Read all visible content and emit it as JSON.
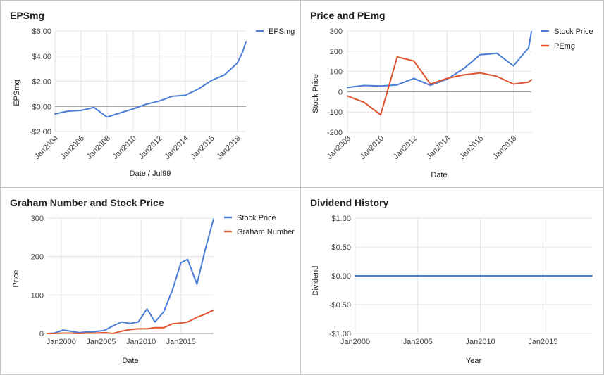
{
  "chart_data": [
    {
      "type": "line",
      "title": "EPSmg",
      "xlabel": "Date / Jul99",
      "ylabel": "EPSmg",
      "xlim": [
        "2004-01",
        "2018-09"
      ],
      "ylim": [
        -2,
        6
      ],
      "x_ticks": [
        {
          "value": "2004-01",
          "label": "Jan2004"
        },
        {
          "value": "2006-01",
          "label": "Jan2006"
        },
        {
          "value": "2008-01",
          "label": "Jan2008"
        },
        {
          "value": "2010-01",
          "label": "Jan2010"
        },
        {
          "value": "2012-01",
          "label": "Jan2012"
        },
        {
          "value": "2014-01",
          "label": "Jan2014"
        },
        {
          "value": "2016-01",
          "label": "Jan2016"
        },
        {
          "value": "2018-01",
          "label": "Jan2018"
        }
      ],
      "y_ticks": [
        {
          "value": 6,
          "label": "$6.00"
        },
        {
          "value": 4,
          "label": "$4.00"
        },
        {
          "value": 2,
          "label": "$2.00"
        },
        {
          "value": 0,
          "label": "$0.00"
        },
        {
          "value": -2,
          "label": "-$2.00"
        }
      ],
      "grid": true,
      "legend": "top-right",
      "series": [
        {
          "name": "EPSmg",
          "color": "#4a7dd8",
          "x": [
            "2004-01",
            "2005-01",
            "2006-01",
            "2007-01",
            "2008-01",
            "2009-01",
            "2010-01",
            "2011-01",
            "2012-01",
            "2013-01",
            "2014-01",
            "2015-01",
            "2016-01",
            "2017-01",
            "2018-01",
            "2018-06",
            "2018-09"
          ],
          "y": [
            -0.6,
            -0.38,
            -0.32,
            -0.08,
            -0.85,
            -0.52,
            -0.2,
            0.17,
            0.42,
            0.8,
            0.88,
            1.38,
            2.05,
            2.5,
            3.45,
            4.35,
            5.15
          ]
        }
      ]
    },
    {
      "type": "line",
      "title": "Price and PEmg",
      "xlabel": "Date",
      "ylabel": "Stock Price",
      "xlim": [
        "2008-01",
        "2019-02"
      ],
      "ylim": [
        -200,
        300
      ],
      "x_ticks": [
        {
          "value": "2008-01",
          "label": "Jan2008"
        },
        {
          "value": "2010-01",
          "label": "Jan2010"
        },
        {
          "value": "2012-01",
          "label": "Jan2012"
        },
        {
          "value": "2014-01",
          "label": "Jan2014"
        },
        {
          "value": "2016-01",
          "label": "Jan2016"
        },
        {
          "value": "2018-01",
          "label": "Jan2018"
        }
      ],
      "y_ticks": [
        {
          "value": 300,
          "label": "300"
        },
        {
          "value": 200,
          "label": "200"
        },
        {
          "value": 100,
          "label": "100"
        },
        {
          "value": 0,
          "label": "0"
        },
        {
          "value": -100,
          "label": "-100"
        },
        {
          "value": -200,
          "label": "-200"
        }
      ],
      "grid": true,
      "legend": "top-right",
      "series": [
        {
          "name": "Stock Price",
          "color": "#4a7dd8",
          "x": [
            "2008-01",
            "2009-01",
            "2010-01",
            "2011-01",
            "2012-01",
            "2013-01",
            "2014-01",
            "2015-01",
            "2016-01",
            "2017-01",
            "2018-01",
            "2018-12",
            "2019-02"
          ],
          "y": [
            21,
            31,
            28,
            34,
            66,
            32,
            62,
            114,
            183,
            190,
            128,
            217,
            297
          ]
        },
        {
          "name": "PEmg",
          "color": "#e0542f",
          "x": [
            "2008-01",
            "2009-01",
            "2010-01",
            "2011-01",
            "2012-01",
            "2013-01",
            "2014-01",
            "2015-01",
            "2016-01",
            "2017-01",
            "2018-01",
            "2018-12",
            "2019-02"
          ],
          "y": [
            -21,
            -52,
            -114,
            172,
            152,
            38,
            66,
            83,
            93,
            76,
            38,
            48,
            59
          ]
        }
      ]
    },
    {
      "type": "line",
      "title": "Graham Number and Stock Price",
      "xlabel": "Date",
      "ylabel": "Price",
      "xlim": [
        "1998-04",
        "2019-02"
      ],
      "ylim": [
        0,
        300
      ],
      "x_ticks": [
        {
          "value": "2000-01",
          "label": "Jan2000"
        },
        {
          "value": "2005-01",
          "label": "Jan2005"
        },
        {
          "value": "2010-01",
          "label": "Jan2010"
        },
        {
          "value": "2015-01",
          "label": "Jan2015"
        }
      ],
      "y_ticks": [
        {
          "value": 300,
          "label": "300"
        },
        {
          "value": 200,
          "label": "200"
        },
        {
          "value": 100,
          "label": "100"
        },
        {
          "value": 0,
          "label": "0"
        }
      ],
      "grid": true,
      "legend": "top-right",
      "series": [
        {
          "name": "Stock Price",
          "color": "#4a7dd8",
          "x": [
            "1998-04",
            "1999-03",
            "2000-04",
            "2001-03",
            "2002-04",
            "2003-04",
            "2004-04",
            "2005-06",
            "2006-07",
            "2007-08",
            "2008-08",
            "2009-09",
            "2010-10",
            "2011-10",
            "2012-11",
            "2013-12",
            "2015-01",
            "2015-11",
            "2017-01",
            "2018-01",
            "2019-02"
          ],
          "y": [
            0,
            1,
            9,
            6,
            2,
            4,
            5,
            8,
            20,
            30,
            26,
            30,
            64,
            30,
            56,
            112,
            184,
            193,
            128,
            215,
            298
          ]
        },
        {
          "name": "Graham Number",
          "color": "#e0542f",
          "x": [
            "1998-04",
            "1999-03",
            "2000-04",
            "2001-03",
            "2002-04",
            "2003-04",
            "2004-04",
            "2005-06",
            "2006-07",
            "2007-08",
            "2008-08",
            "2009-09",
            "2010-10",
            "2011-10",
            "2012-11",
            "2013-12",
            "2015-01",
            "2015-11",
            "2017-01",
            "2018-01",
            "2019-02"
          ],
          "y": [
            0,
            0,
            1,
            1,
            0,
            1,
            1,
            2,
            0,
            6,
            10,
            12,
            12,
            15,
            15,
            25,
            27,
            30,
            42,
            50,
            61
          ]
        }
      ]
    },
    {
      "type": "line",
      "title": "Dividend History",
      "xlabel": "Year",
      "ylabel": "Dividend",
      "xlim": [
        "2000-01",
        "2018-12"
      ],
      "ylim": [
        -1,
        1
      ],
      "x_ticks": [
        {
          "value": "2000-01",
          "label": "Jan2000"
        },
        {
          "value": "2005-01",
          "label": "Jan2005"
        },
        {
          "value": "2010-01",
          "label": "Jan2010"
        },
        {
          "value": "2015-01",
          "label": "Jan2015"
        }
      ],
      "y_ticks": [
        {
          "value": 1,
          "label": "$1.00"
        },
        {
          "value": 0.5,
          "label": "$0.50"
        },
        {
          "value": 0,
          "label": "$0.00"
        },
        {
          "value": -0.5,
          "label": "-$0.50"
        },
        {
          "value": -1,
          "label": "-$1.00"
        }
      ],
      "grid": true,
      "legend": "none",
      "series": [
        {
          "color": "#4a7dd8",
          "x": [
            "2000-01",
            "2001-01",
            "2002-01",
            "2003-01",
            "2004-01",
            "2005-01",
            "2006-01",
            "2007-01",
            "2008-01",
            "2009-01",
            "2010-01",
            "2011-01",
            "2012-01",
            "2013-01",
            "2014-01",
            "2015-01",
            "2016-01",
            "2017-01",
            "2018-01",
            "2018-12"
          ],
          "y": [
            0,
            0,
            0,
            0,
            0,
            0,
            0,
            0,
            0,
            0,
            0,
            0,
            0,
            0,
            0,
            0,
            0,
            0,
            0,
            0
          ]
        }
      ]
    }
  ]
}
